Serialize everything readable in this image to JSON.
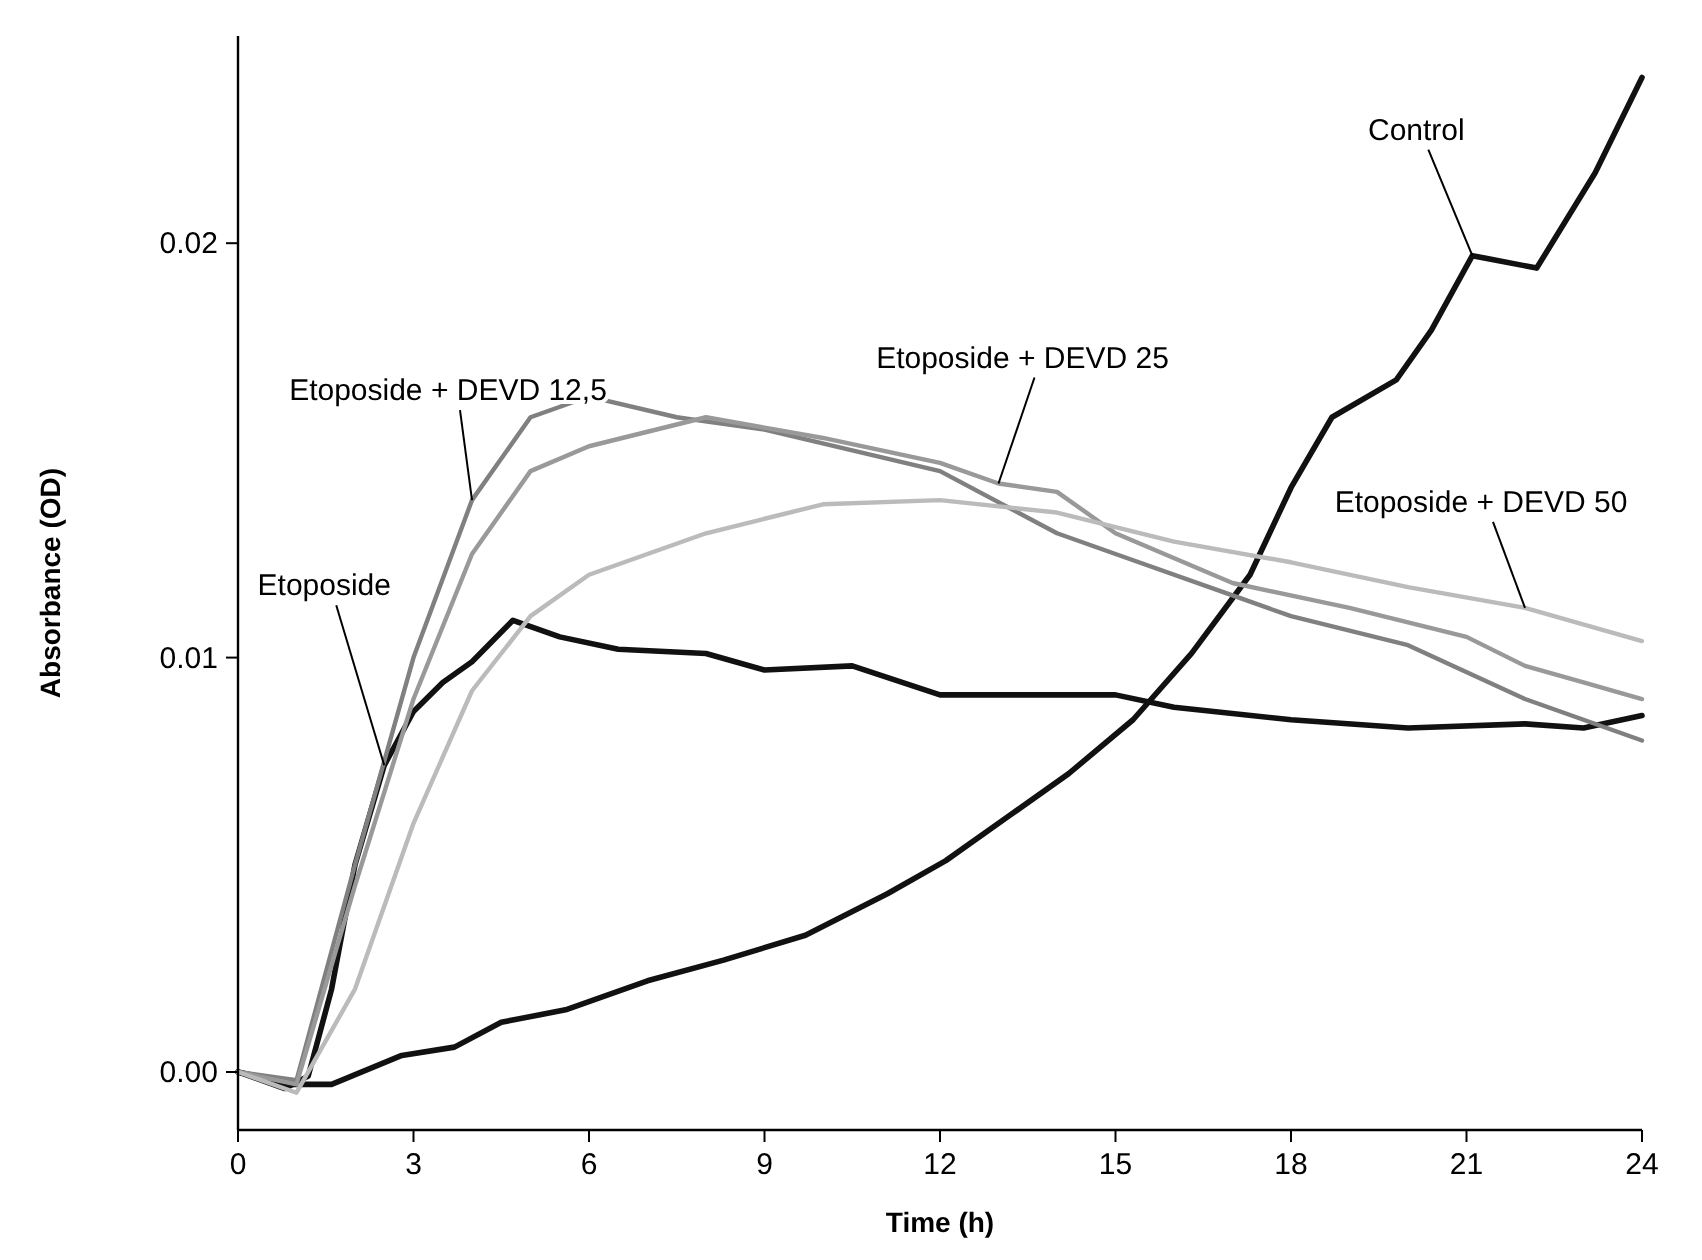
{
  "chart_data": {
    "type": "line",
    "xlabel": "Time (h)",
    "ylabel": "Absorbance (OD)",
    "xlim": [
      0,
      24
    ],
    "ylim": [
      -0.0014,
      0.025
    ],
    "xticks": [
      0,
      3,
      6,
      9,
      12,
      15,
      18,
      21,
      24
    ],
    "yticks": [
      {
        "value": 0,
        "label": "0.00"
      },
      {
        "value": 0.01,
        "label": "0.01"
      },
      {
        "value": 0.02,
        "label": "0.02"
      }
    ],
    "grid": false,
    "marker": "none",
    "line_style": "solid",
    "series": [
      {
        "color": "#111111",
        "x": [
          0,
          0.9,
          1.6,
          2.8,
          3.7,
          4.5,
          5.6,
          7,
          8.3,
          9.7,
          11.1,
          12.1,
          13.2,
          14.2,
          15.3,
          16.3,
          17.3,
          18,
          18.7,
          19.8,
          20.4,
          21.1,
          22.2,
          23.2,
          24
        ],
        "values": [
          0,
          -0.0003,
          -0.0003,
          0.0004,
          0.0006,
          0.0012,
          0.0015,
          0.0022,
          0.0027,
          0.0033,
          0.0043,
          0.0051,
          0.0062,
          0.0072,
          0.0085,
          0.0101,
          0.012,
          0.0141,
          0.0158,
          0.0167,
          0.0179,
          0.0197,
          0.0194,
          0.0217,
          0.024
        ]
      },
      {
        "color": "#111111",
        "x": [
          0,
          0.8,
          1.2,
          1.6,
          2,
          2.5,
          3,
          3.5,
          4,
          4.7,
          5.5,
          6.5,
          8,
          9,
          10.5,
          12,
          13.5,
          15,
          16,
          18,
          20,
          22,
          23,
          24
        ],
        "values": [
          0,
          -0.0004,
          -0.0001,
          0.002,
          0.005,
          0.0074,
          0.0087,
          0.0094,
          0.0099,
          0.0109,
          0.0105,
          0.0102,
          0.0101,
          0.0097,
          0.0098,
          0.0091,
          0.0091,
          0.0091,
          0.0088,
          0.0085,
          0.0083,
          0.0084,
          0.0083,
          0.0086
        ]
      },
      {
        "color": "#808080",
        "x": [
          0,
          1,
          2,
          3,
          4,
          5,
          6,
          7.5,
          9,
          12,
          14,
          15,
          17,
          18,
          20,
          22,
          23,
          24
        ],
        "values": [
          0,
          -0.0002,
          0.005,
          0.01,
          0.0138,
          0.0158,
          0.0163,
          0.0158,
          0.0155,
          0.0145,
          0.013,
          0.0125,
          0.0115,
          0.011,
          0.0103,
          0.009,
          0.0085,
          0.008
        ]
      },
      {
        "color": "#999999",
        "x": [
          0,
          1,
          2,
          3,
          4,
          5,
          6,
          8,
          10,
          12,
          13,
          14,
          15,
          17,
          19,
          21,
          22,
          23,
          24
        ],
        "values": [
          0,
          -0.0003,
          0.0045,
          0.009,
          0.0125,
          0.0145,
          0.0151,
          0.0158,
          0.0153,
          0.0147,
          0.0142,
          0.014,
          0.013,
          0.0118,
          0.0112,
          0.0105,
          0.0098,
          0.0094,
          0.009
        ]
      },
      {
        "color": "#bbbbbb",
        "x": [
          0,
          1,
          2,
          3,
          4,
          5,
          6,
          8,
          10,
          12,
          14,
          16,
          18,
          20,
          22,
          24
        ],
        "values": [
          0,
          -0.0005,
          0.002,
          0.006,
          0.0092,
          0.011,
          0.012,
          0.013,
          0.0137,
          0.0138,
          0.0135,
          0.0128,
          0.0123,
          0.0117,
          0.0112,
          0.0104
        ]
      }
    ],
    "annotations": [
      {
        "text": "Control",
        "x": 21.1,
        "y": 0.0197
      },
      {
        "text": "Etoposide + DEVD 12,5",
        "x": 4,
        "y": 0.0138
      },
      {
        "text": "Etoposide + DEVD 25",
        "x": 13,
        "y": 0.0142
      },
      {
        "text": "Etoposide + DEVD 50",
        "x": 22,
        "y": 0.0112
      },
      {
        "text": "Etoposide",
        "x": 2.5,
        "y": 0.0074
      }
    ]
  }
}
